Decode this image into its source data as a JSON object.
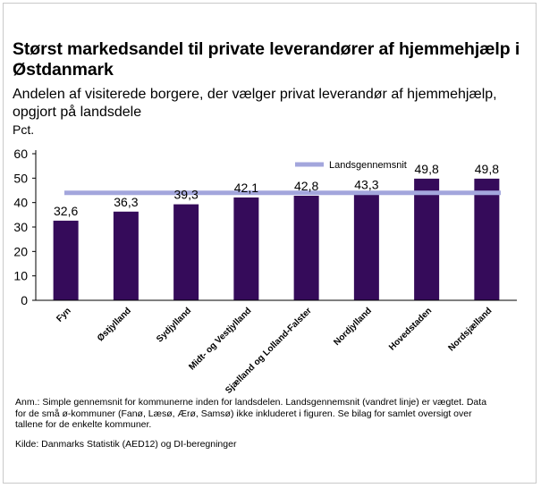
{
  "title": "Størst markedsandel til private leverandører af hjemmehjælp i Østdanmark",
  "subtitle": "Andelen af visiterede borgere, der vælger privat leverandør af hjemmehjælp, opgjort på landsdele",
  "unit_label": "Pct.",
  "note": "Anm.: Simple gennemsnit for kommunerne inden for landsdelen. Landsgennemsnit (vandret linje) er vægtet. Data for de små ø-kommuner (Fanø, Læsø, Ærø, Samsø) ikke inkluderet i figuren. Se bilag for samlet oversigt over tallene for de enkelte kommuner.",
  "source": "Kilde: Danmarks Statistik (AED12) og DI-beregninger",
  "chart_data": {
    "type": "bar",
    "categories": [
      "Fyn",
      "Østjylland",
      "Sydjylland",
      "Midt- og Vestjylland",
      "Sjælland og Lolland-Falster",
      "Nordjylland",
      "Hovedstaden",
      "Nordsjælland"
    ],
    "series": [
      {
        "values": [
          32.6,
          36.3,
          39.3,
          42.1,
          42.8,
          43.3,
          49.8,
          49.8
        ],
        "color": "#350b5a"
      }
    ],
    "data_labels": [
      "32,6",
      "36,3",
      "39,3",
      "42,1",
      "42,8",
      "43,3",
      "49,8",
      "49,8"
    ],
    "reference_line": {
      "name": "Landsgennemsnit",
      "value": 44,
      "color": "#a3a6dc"
    },
    "ylim": [
      0,
      60
    ],
    "yticks": [
      0,
      10,
      20,
      30,
      40,
      50,
      60
    ],
    "xlabel": "",
    "ylabel": "Pct.",
    "grid": false,
    "legend_position": "top-right"
  }
}
